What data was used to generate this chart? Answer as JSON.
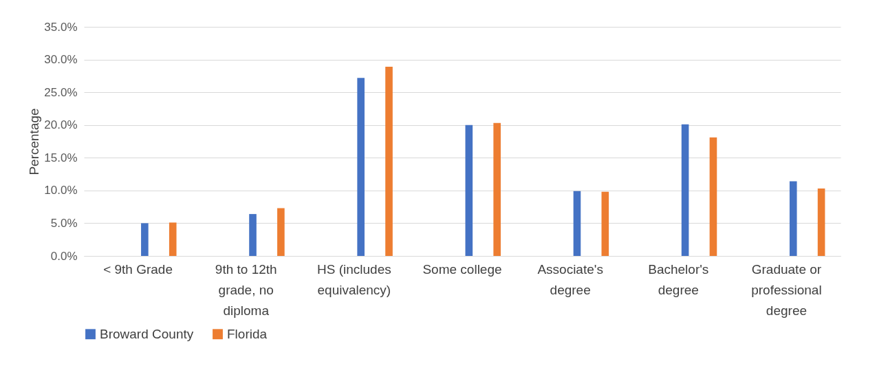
{
  "chart_data": {
    "type": "bar",
    "ylabel": "Percentage",
    "categories": [
      "< 9th Grade",
      "9th to 12th grade, no diploma",
      "HS (includes equivalency)",
      "Some college",
      "Associate's degree",
      "Bachelor's degree",
      "Graduate or professional degree"
    ],
    "series": [
      {
        "name": "Broward County",
        "color": "#4472c4",
        "values": [
          5.0,
          6.4,
          27.2,
          20.0,
          9.9,
          20.1,
          11.4
        ]
      },
      {
        "name": "Florida",
        "color": "#ed7d31",
        "values": [
          5.1,
          7.3,
          28.9,
          20.3,
          9.8,
          18.1,
          10.3
        ]
      }
    ],
    "ylim": [
      0,
      35
    ],
    "yticks": [
      {
        "value": 0,
        "label": "0.0%"
      },
      {
        "value": 5,
        "label": "5.0%"
      },
      {
        "value": 10,
        "label": "10.0%"
      },
      {
        "value": 15,
        "label": "15.0%"
      },
      {
        "value": 20,
        "label": "20.0%"
      },
      {
        "value": 25,
        "label": "25.0%"
      },
      {
        "value": 30,
        "label": "30.0%"
      },
      {
        "value": 35,
        "label": "35.0%"
      }
    ],
    "grid": "y",
    "legend": "bottom"
  }
}
